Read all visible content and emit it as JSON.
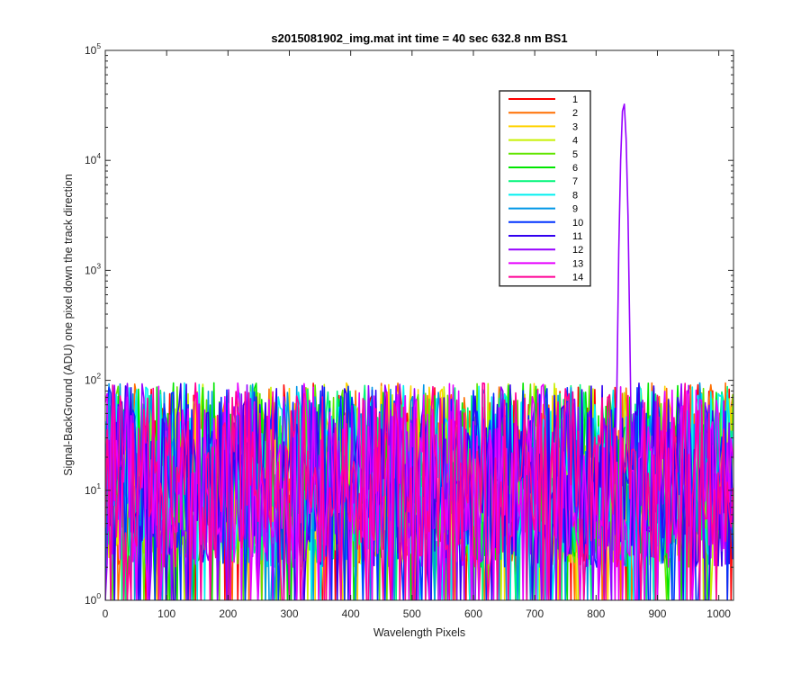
{
  "chart_data": {
    "type": "line",
    "title": "s2015081902_img.mat int time = 40 sec  632.8 nm BS1",
    "xlabel": "Wavelength Pixels",
    "ylabel": "Signal-BackGround (ADU) one pixel down the track direction",
    "xlim": [
      0,
      1024
    ],
    "ylim": [
      1,
      100000
    ],
    "yscale": "log",
    "grid": false,
    "legend_position": "top-right",
    "x_ticks": [
      "0",
      "100",
      "200",
      "300",
      "400",
      "500",
      "600",
      "700",
      "800",
      "900",
      "1000"
    ],
    "y_ticks": [
      {
        "base": "10",
        "exp": "0"
      },
      {
        "base": "10",
        "exp": "1"
      },
      {
        "base": "10",
        "exp": "2"
      },
      {
        "base": "10",
        "exp": "3"
      },
      {
        "base": "10",
        "exp": "4"
      },
      {
        "base": "10",
        "exp": "5"
      }
    ],
    "noise_floor_range": [
      1,
      100
    ],
    "peak": {
      "x": 845,
      "y": 34000,
      "series": "12"
    },
    "series": [
      {
        "name": "1",
        "color": "#ff0000"
      },
      {
        "name": "2",
        "color": "#ff6f00"
      },
      {
        "name": "3",
        "color": "#ffd200"
      },
      {
        "name": "4",
        "color": "#c8f000"
      },
      {
        "name": "5",
        "color": "#62e600"
      },
      {
        "name": "6",
        "color": "#00e600"
      },
      {
        "name": "7",
        "color": "#00f57a"
      },
      {
        "name": "8",
        "color": "#00f0f0"
      },
      {
        "name": "9",
        "color": "#0096e6"
      },
      {
        "name": "10",
        "color": "#0032ff"
      },
      {
        "name": "11",
        "color": "#3200f0"
      },
      {
        "name": "12",
        "color": "#9600ff"
      },
      {
        "name": "13",
        "color": "#e600ff"
      },
      {
        "name": "14",
        "color": "#ff0096"
      }
    ]
  }
}
